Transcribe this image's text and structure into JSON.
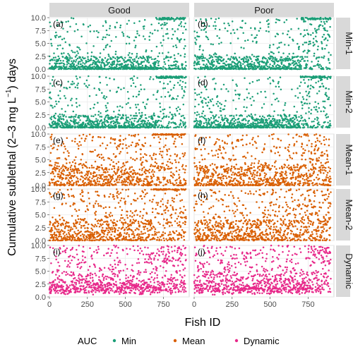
{
  "chart_data": {
    "type": "scatter",
    "columns": [
      "Good",
      "Poor"
    ],
    "rows": [
      "Min-1",
      "Min-2",
      "Mean-1",
      "Mean-2",
      "Dynamic"
    ],
    "panel_labels": [
      [
        "(a)",
        "(b)"
      ],
      [
        "(c)",
        "(d)"
      ],
      [
        "(e)",
        "(f)"
      ],
      [
        "(g)",
        "(h)"
      ],
      [
        "(i)",
        "(j)"
      ]
    ],
    "row_series": [
      "Min",
      "Min",
      "Mean",
      "Mean",
      "Dynamic"
    ],
    "xlabel": "Fish ID",
    "ylabel_parts": [
      "Cumulative sublethal (2–3 mg L",
      "−1",
      ") days"
    ],
    "xlim": [
      0,
      920
    ],
    "ylim": [
      0,
      10
    ],
    "xticks": [
      0,
      250,
      500,
      750
    ],
    "yticks": [
      0.0,
      2.5,
      5.0,
      7.5,
      10.0
    ],
    "ytick_labels": [
      "0.0",
      "2.5",
      "5.0",
      "7.5",
      "10.0"
    ],
    "points_per_panel": 900,
    "series": [
      {
        "name": "Min",
        "color": "#1b9e77"
      },
      {
        "name": "Mean",
        "color": "#d95f02"
      },
      {
        "name": "Dynamic",
        "color": "#e7298a"
      }
    ],
    "legend": {
      "title": "AUC",
      "position": "bottom"
    },
    "grid": true
  }
}
